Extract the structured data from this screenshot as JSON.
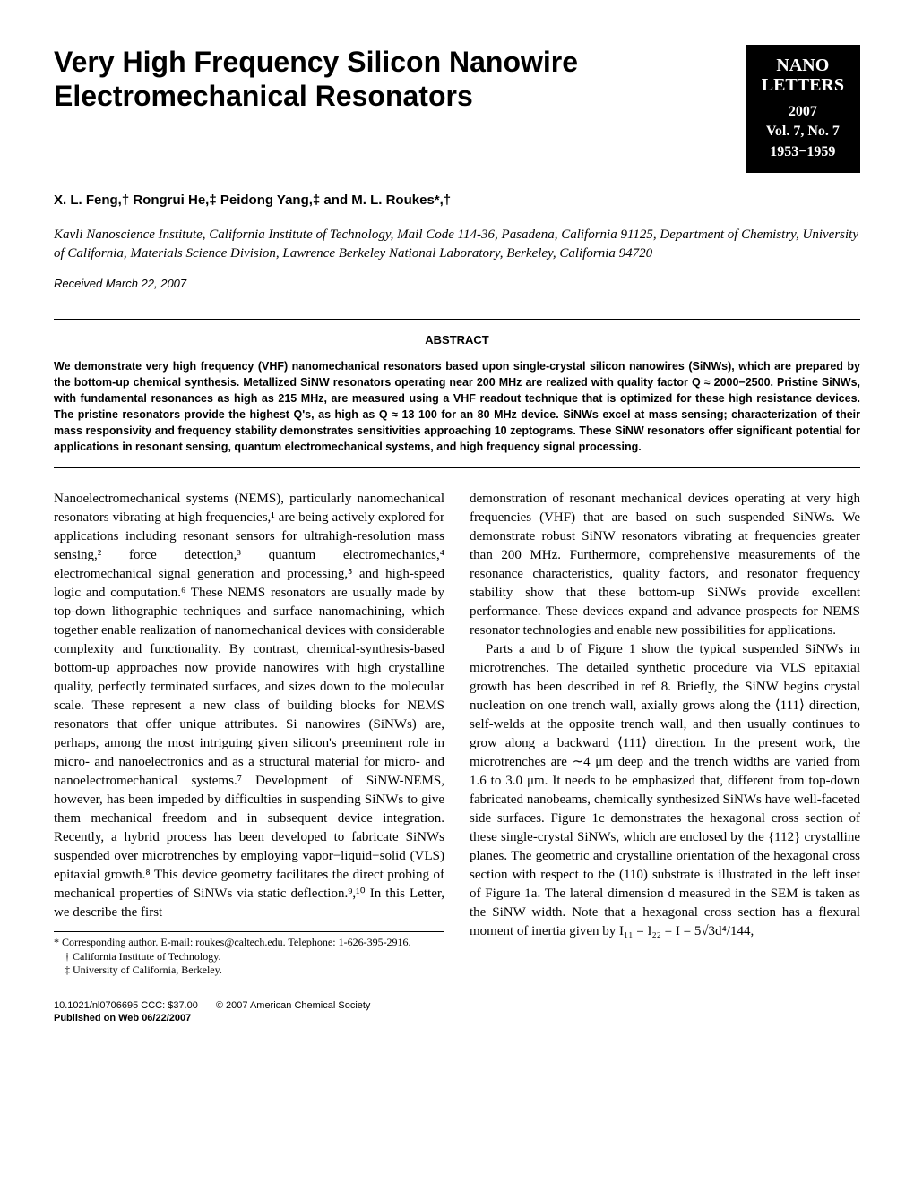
{
  "title": "Very High Frequency Silicon Nanowire Electromechanical Resonators",
  "journal": {
    "name_line1": "NANO",
    "name_line2": "LETTERS",
    "year": "2007",
    "volume": "Vol. 7, No. 7",
    "pages": "1953−1959"
  },
  "authors": "X. L. Feng,† Rongrui He,‡ Peidong Yang,‡ and M. L. Roukes*,†",
  "affiliation": "Kavli Nanoscience Institute, California Institute of Technology, Mail Code 114-36, Pasadena, California 91125, Department of Chemistry, University of California, Materials Science Division, Lawrence Berkeley National Laboratory, Berkeley, California 94720",
  "received": "Received March 22, 2007",
  "abstract_heading": "ABSTRACT",
  "abstract": "We demonstrate very high frequency (VHF) nanomechanical resonators based upon single-crystal silicon nanowires (SiNWs), which are prepared by the bottom-up chemical synthesis. Metallized SiNW resonators operating near 200 MHz are realized with quality factor Q ≈ 2000−2500. Pristine SiNWs, with fundamental resonances as high as 215 MHz, are measured using a VHF readout technique that is optimized for these high resistance devices. The pristine resonators provide the highest Q's, as high as Q ≈ 13 100 for an 80 MHz device. SiNWs excel at mass sensing; characterization of their mass responsivity and frequency stability demonstrates sensitivities approaching 10 zeptograms. These SiNW resonators offer significant potential for applications in resonant sensing, quantum electromechanical systems, and high frequency signal processing.",
  "body_p1": "Nanoelectromechanical systems (NEMS), particularly nanomechanical resonators vibrating at high frequencies,¹ are being actively explored for applications including resonant sensors for ultrahigh-resolution mass sensing,² force detection,³ quantum electromechanics,⁴ electromechanical signal generation and processing,⁵ and high-speed logic and computation.⁶ These NEMS resonators are usually made by top-down lithographic techniques and surface nanomachining, which together enable realization of nanomechanical devices with considerable complexity and functionality. By contrast, chemical-synthesis-based bottom-up approaches now provide nanowires with high crystalline quality, perfectly terminated surfaces, and sizes down to the molecular scale. These represent a new class of building blocks for NEMS resonators that offer unique attributes. Si nanowires (SiNWs) are, perhaps, among the most intriguing given silicon's preeminent role in micro- and nanoelectronics and as a structural material for micro- and nanoelectromechanical systems.⁷ Development of SiNW-NEMS, however, has been impeded by difficulties in suspending SiNWs to give them mechanical freedom and in subsequent device integration. Recently, a hybrid process has been developed to fabricate SiNWs suspended over microtrenches by employing vapor−liquid−solid (VLS) epitaxial growth.⁸ This device geometry facilitates the direct probing of mechanical properties of SiNWs via static deflection.⁹,¹⁰ In this Letter, we describe the first",
  "body_p2": "demonstration of resonant mechanical devices operating at very high frequencies (VHF) that are based on such suspended SiNWs. We demonstrate robust SiNW resonators vibrating at frequencies greater than 200 MHz. Furthermore, comprehensive measurements of the resonance characteristics, quality factors, and resonator frequency stability show that these bottom-up SiNWs provide excellent performance. These devices expand and advance prospects for NEMS resonator technologies and enable new possibilities for applications.",
  "body_p3": "Parts a and b of Figure 1 show the typical suspended SiNWs in microtrenches. The detailed synthetic procedure via VLS epitaxial growth has been described in ref 8. Briefly, the SiNW begins crystal nucleation on one trench wall, axially grows along the ⟨111⟩ direction, self-welds at the opposite trench wall, and then usually continues to grow along a backward ⟨111⟩ direction. In the present work, the microtrenches are ∼4 μm deep and the trench widths are varied from 1.6 to 3.0 μm. It needs to be emphasized that, different from top-down fabricated nanobeams, chemically synthesized SiNWs have well-faceted side surfaces. Figure 1c demonstrates the hexagonal cross section of these single-crystal SiNWs, which are enclosed by the {112} crystalline planes. The geometric and crystalline orientation of the hexagonal cross section with respect to the (110) substrate is illustrated in the left inset of Figure 1a. The lateral dimension d measured in the SEM is taken as the SiNW width. Note that a hexagonal cross section has a flexural moment of inertia given by I₁₁ = I₂₂ = I = 5√3d⁴/144,",
  "footnotes": {
    "corresponding": "* Corresponding author. E-mail: roukes@caltech.edu. Telephone: 1-626-395-2916.",
    "aff1": "† California Institute of Technology.",
    "aff2": "‡ University of California, Berkeley."
  },
  "pub": {
    "doi": "10.1021/nl0706695 CCC: $37.00",
    "copyright": "© 2007 American Chemical Society",
    "published": "Published on Web 06/22/2007"
  }
}
